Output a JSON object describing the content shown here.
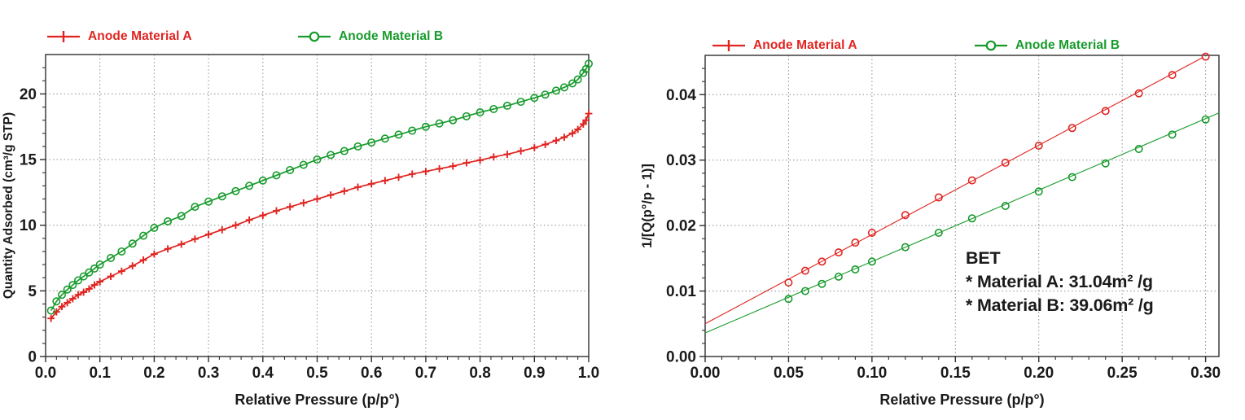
{
  "page": {
    "background": "#ffffff"
  },
  "colors": {
    "material_a": "#e02420",
    "material_b": "#179b2c",
    "axis": "#2f2f2f",
    "grid": "#8f8f8f",
    "text": "#1a1a1a",
    "annotation_text": "#1b1b1b"
  },
  "bet_summary": {
    "title": "BET",
    "line_a": "* Material A: 31.04m² /g",
    "line_b": "* Material B: 39.06m² /g"
  },
  "chart_data": [
    {
      "type": "line",
      "title": "",
      "xlabel": "Relative Pressure (p/p°)",
      "ylabel": "Quantity Adsorbed (cm³/g STP)",
      "xlim": [
        0,
        1.0
      ],
      "ylim": [
        0,
        23
      ],
      "x_ticks": [
        0,
        0.1,
        0.2,
        0.3,
        0.4,
        0.5,
        0.6,
        0.7,
        0.8,
        0.9,
        1.0
      ],
      "x_tick_labels": [
        "0.0",
        "0.1",
        "0.2",
        "0.3",
        "0.4",
        "0.5",
        "0.6",
        "0.7",
        "0.8",
        "0.9",
        "1.0"
      ],
      "y_ticks": [
        0,
        5,
        10,
        15,
        20
      ],
      "y_tick_labels": [
        "0",
        "5",
        "10",
        "15",
        "20"
      ],
      "x_minor": 0.02,
      "y_minor": 1,
      "grid": "dotted-at-majors",
      "legend_position": "top",
      "series": [
        {
          "name": "Anode Material A",
          "color": "#e02420",
          "marker": "plus",
          "line": true,
          "x": [
            0.01,
            0.02,
            0.03,
            0.04,
            0.05,
            0.06,
            0.07,
            0.08,
            0.09,
            0.1,
            0.12,
            0.14,
            0.16,
            0.18,
            0.2,
            0.225,
            0.25,
            0.275,
            0.3,
            0.325,
            0.35,
            0.375,
            0.4,
            0.425,
            0.45,
            0.475,
            0.5,
            0.525,
            0.55,
            0.575,
            0.6,
            0.625,
            0.65,
            0.675,
            0.7,
            0.725,
            0.75,
            0.775,
            0.8,
            0.825,
            0.85,
            0.875,
            0.9,
            0.92,
            0.94,
            0.955,
            0.97,
            0.98,
            0.99,
            0.995,
            1.0
          ],
          "y": [
            2.9,
            3.4,
            3.8,
            4.1,
            4.4,
            4.7,
            4.9,
            5.15,
            5.45,
            5.7,
            6.1,
            6.5,
            6.9,
            7.35,
            7.8,
            8.2,
            8.55,
            8.95,
            9.3,
            9.65,
            10.0,
            10.4,
            10.75,
            11.1,
            11.4,
            11.7,
            12.0,
            12.3,
            12.6,
            12.9,
            13.15,
            13.4,
            13.65,
            13.9,
            14.1,
            14.3,
            14.5,
            14.75,
            14.95,
            15.2,
            15.4,
            15.65,
            15.9,
            16.15,
            16.45,
            16.7,
            17.0,
            17.3,
            17.7,
            18.0,
            18.5
          ]
        },
        {
          "name": "Anode Material B",
          "color": "#179b2c",
          "marker": "circle",
          "line": true,
          "x": [
            0.01,
            0.02,
            0.03,
            0.04,
            0.05,
            0.06,
            0.07,
            0.08,
            0.09,
            0.1,
            0.12,
            0.14,
            0.16,
            0.18,
            0.2,
            0.225,
            0.25,
            0.275,
            0.3,
            0.325,
            0.35,
            0.375,
            0.4,
            0.425,
            0.45,
            0.475,
            0.5,
            0.525,
            0.55,
            0.575,
            0.6,
            0.625,
            0.65,
            0.675,
            0.7,
            0.725,
            0.75,
            0.775,
            0.8,
            0.825,
            0.85,
            0.875,
            0.9,
            0.92,
            0.94,
            0.955,
            0.97,
            0.98,
            0.99,
            0.995,
            1.0
          ],
          "y": [
            3.5,
            4.2,
            4.7,
            5.1,
            5.45,
            5.8,
            6.1,
            6.4,
            6.7,
            7.0,
            7.5,
            8.0,
            8.6,
            9.2,
            9.8,
            10.3,
            10.7,
            11.4,
            11.8,
            12.2,
            12.6,
            13.0,
            13.4,
            13.8,
            14.2,
            14.6,
            15.0,
            15.35,
            15.65,
            16.0,
            16.3,
            16.6,
            16.9,
            17.2,
            17.5,
            17.75,
            18.0,
            18.3,
            18.6,
            18.85,
            19.1,
            19.4,
            19.7,
            19.95,
            20.25,
            20.5,
            20.8,
            21.1,
            21.6,
            21.9,
            22.3
          ]
        }
      ]
    },
    {
      "type": "scatter",
      "title": "",
      "xlabel": "Relative Pressure (p/p°)",
      "ylabel": "1/[Q(p°/p - 1)]",
      "xlim": [
        0,
        0.308
      ],
      "ylim": [
        0,
        0.046
      ],
      "x_ticks": [
        0,
        0.05,
        0.1,
        0.15,
        0.2,
        0.25,
        0.3
      ],
      "x_tick_labels": [
        "0.00",
        "0.05",
        "0.10",
        "0.15",
        "0.20",
        "0.25",
        "0.30"
      ],
      "y_ticks": [
        0,
        0.01,
        0.02,
        0.03,
        0.04
      ],
      "y_tick_labels": [
        "0.00",
        "0.01",
        "0.02",
        "0.03",
        "0.04"
      ],
      "x_minor": 0.01,
      "y_minor": 0.002,
      "grid": "dotted-at-majors",
      "legend_position": "top",
      "series": [
        {
          "name": "Anode Material A",
          "color": "#e02420",
          "marker": "circle",
          "line": false,
          "x": [
            0.05,
            0.06,
            0.07,
            0.08,
            0.09,
            0.1,
            0.12,
            0.14,
            0.16,
            0.18,
            0.2,
            0.22,
            0.24,
            0.26,
            0.28,
            0.3
          ],
          "y": [
            0.0113,
            0.0131,
            0.0145,
            0.0159,
            0.0174,
            0.0189,
            0.0216,
            0.0243,
            0.0269,
            0.0296,
            0.0322,
            0.0349,
            0.0375,
            0.0402,
            0.043,
            0.0458
          ],
          "fit_line": {
            "x": [
              0,
              0.2985
            ],
            "y": [
              0.005,
              0.0457
            ]
          }
        },
        {
          "name": "Anode Material B",
          "color": "#179b2c",
          "marker": "circle",
          "line": false,
          "x": [
            0.05,
            0.06,
            0.07,
            0.08,
            0.09,
            0.1,
            0.12,
            0.14,
            0.16,
            0.18,
            0.2,
            0.22,
            0.24,
            0.26,
            0.28,
            0.3
          ],
          "y": [
            0.0088,
            0.01,
            0.0111,
            0.0122,
            0.0133,
            0.0145,
            0.0167,
            0.0189,
            0.0211,
            0.023,
            0.0252,
            0.0274,
            0.0295,
            0.0317,
            0.0339,
            0.0362
          ],
          "fit_line": {
            "x": [
              0,
              0.308
            ],
            "y": [
              0.0036,
              0.0372
            ]
          }
        }
      ],
      "annotation": {
        "title": "BET",
        "lines": [
          "* Material A: 31.04m² /g",
          "* Material B: 39.06m² /g"
        ]
      }
    }
  ]
}
